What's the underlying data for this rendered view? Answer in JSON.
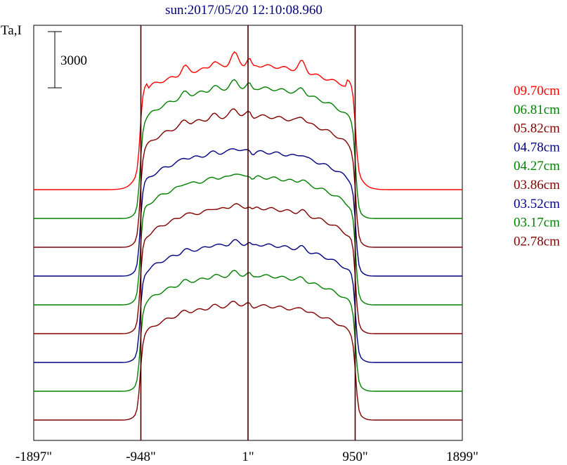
{
  "chart_data": {
    "type": "line",
    "title": "sun:2017/05/20 12:10:08.960",
    "ylabel": "Ta,I",
    "scale_bar_label": "3000",
    "x_ticks": [
      "-1897\"",
      "-948\"",
      "1\"",
      "950\"",
      "1899\""
    ],
    "xlim": [
      -1897,
      1899
    ],
    "limb_lines": [
      -948,
      1,
      950
    ],
    "legend_position": "right",
    "series": [
      {
        "name": "09.70cm",
        "color": "#ff0000"
      },
      {
        "name": "06.81cm",
        "color": "#008000"
      },
      {
        "name": "05.82cm",
        "color": "#800000"
      },
      {
        "name": "04.78cm",
        "color": "#000080"
      },
      {
        "name": "04.27cm",
        "color": "#008000"
      },
      {
        "name": "03.86cm",
        "color": "#800000"
      },
      {
        "name": "03.52cm",
        "color": "#000080"
      },
      {
        "name": "03.17cm",
        "color": "#008000"
      },
      {
        "name": "02.78cm",
        "color": "#800000"
      }
    ]
  }
}
